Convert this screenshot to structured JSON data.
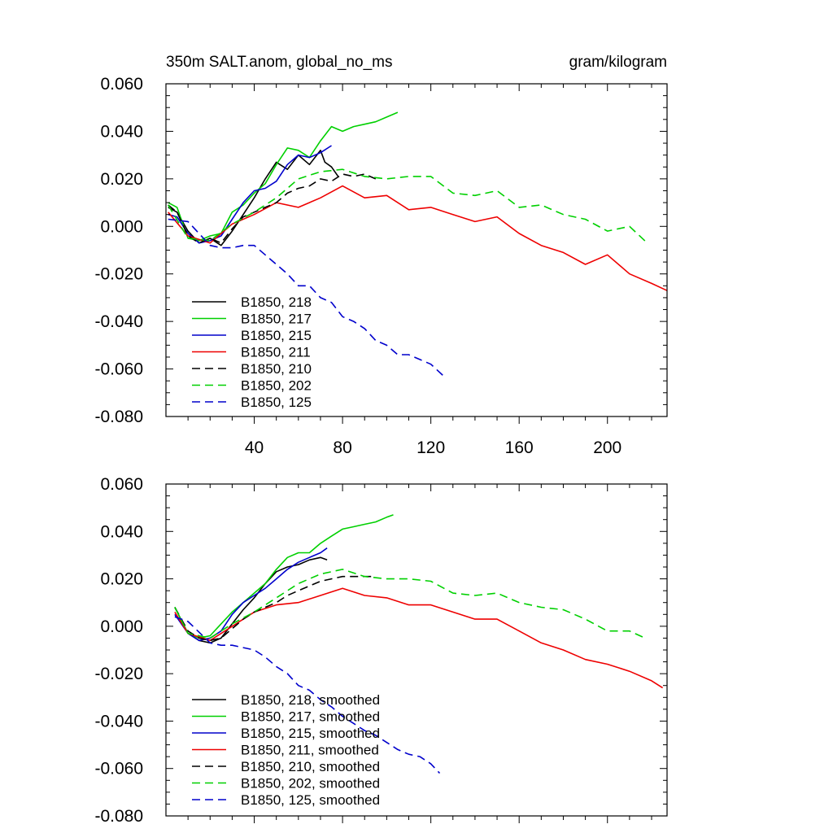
{
  "chart_data": [
    {
      "type": "line",
      "title": "350m SALT.anom, global_no_ms",
      "units": "gram/kilogram",
      "xlabel": "",
      "ylabel": "",
      "xlim": [
        0,
        227
      ],
      "ylim": [
        -0.08,
        0.06
      ],
      "xticks": [
        40,
        80,
        120,
        160,
        200
      ],
      "xtick_labels": [
        "40",
        "80",
        "120",
        "160",
        "200"
      ],
      "yticks": [
        0.06,
        0.04,
        0.02,
        0.0,
        -0.02,
        -0.04,
        -0.06,
        -0.08
      ],
      "ytick_labels": [
        "0.060",
        "0.040",
        "0.020",
        "0.000",
        "-0.020",
        "-0.040",
        "-0.060",
        "-0.080"
      ],
      "legend_position": "bottom-left",
      "series": [
        {
          "name": "B1850, 218",
          "color": "#000000",
          "dash": "solid",
          "x": [
            1,
            5,
            10,
            15,
            20,
            25,
            30,
            35,
            40,
            45,
            50,
            55,
            60,
            65,
            70,
            72,
            75,
            78
          ],
          "y": [
            0.008,
            0.006,
            -0.002,
            -0.007,
            -0.005,
            -0.008,
            -0.002,
            0.005,
            0.012,
            0.02,
            0.027,
            0.024,
            0.03,
            0.026,
            0.032,
            0.027,
            0.025,
            0.021
          ]
        },
        {
          "name": "B1850, 217",
          "color": "#00d000",
          "dash": "solid",
          "x": [
            1,
            5,
            10,
            15,
            20,
            25,
            30,
            35,
            40,
            45,
            50,
            55,
            60,
            65,
            70,
            75,
            80,
            85,
            90,
            95,
            100,
            105
          ],
          "y": [
            0.01,
            0.008,
            -0.005,
            -0.006,
            -0.004,
            -0.003,
            0.006,
            0.009,
            0.014,
            0.018,
            0.026,
            0.033,
            0.032,
            0.029,
            0.036,
            0.042,
            0.04,
            0.042,
            0.043,
            0.044,
            0.046,
            0.048
          ]
        },
        {
          "name": "B1850, 215",
          "color": "#0000cc",
          "dash": "solid",
          "x": [
            1,
            5,
            10,
            15,
            20,
            25,
            30,
            35,
            40,
            45,
            50,
            55,
            60,
            65,
            70,
            75
          ],
          "y": [
            0.005,
            0.004,
            -0.003,
            -0.007,
            -0.006,
            -0.004,
            0.003,
            0.01,
            0.015,
            0.016,
            0.019,
            0.026,
            0.03,
            0.029,
            0.031,
            0.034
          ]
        },
        {
          "name": "B1850, 211",
          "color": "#ee0000",
          "dash": "solid",
          "x": [
            1,
            10,
            20,
            30,
            40,
            50,
            60,
            70,
            80,
            90,
            100,
            110,
            120,
            130,
            140,
            150,
            160,
            170,
            180,
            190,
            200,
            210,
            220,
            227
          ],
          "y": [
            0.006,
            -0.004,
            -0.007,
            0.001,
            0.005,
            0.01,
            0.008,
            0.012,
            0.017,
            0.012,
            0.013,
            0.007,
            0.008,
            0.005,
            0.002,
            0.004,
            -0.003,
            -0.008,
            -0.011,
            -0.016,
            -0.012,
            -0.02,
            -0.024,
            -0.027
          ]
        },
        {
          "name": "B1850, 210",
          "color": "#000000",
          "dash": "dashed",
          "x": [
            1,
            5,
            10,
            15,
            20,
            25,
            30,
            35,
            40,
            45,
            50,
            55,
            60,
            65,
            70,
            75,
            80,
            85,
            90,
            95
          ],
          "y": [
            0.009,
            0.006,
            -0.004,
            -0.007,
            -0.005,
            -0.007,
            -0.001,
            0.004,
            0.006,
            0.008,
            0.01,
            0.014,
            0.016,
            0.017,
            0.02,
            0.019,
            0.022,
            0.021,
            0.022,
            0.02
          ]
        },
        {
          "name": "B1850, 202",
          "color": "#00d000",
          "dash": "dashed",
          "x": [
            1,
            10,
            20,
            30,
            40,
            50,
            60,
            70,
            80,
            90,
            100,
            110,
            120,
            130,
            140,
            150,
            160,
            170,
            180,
            190,
            200,
            210,
            218
          ],
          "y": [
            0.009,
            -0.005,
            -0.006,
            0.001,
            0.006,
            0.012,
            0.02,
            0.023,
            0.024,
            0.021,
            0.02,
            0.021,
            0.021,
            0.014,
            0.013,
            0.015,
            0.008,
            0.009,
            0.005,
            0.003,
            -0.002,
            0.0,
            -0.007
          ]
        },
        {
          "name": "B1850, 125",
          "color": "#0000cc",
          "dash": "dashed",
          "x": [
            1,
            10,
            20,
            25,
            30,
            35,
            40,
            45,
            50,
            55,
            60,
            65,
            70,
            75,
            80,
            85,
            90,
            95,
            100,
            105,
            110,
            115,
            120,
            127
          ],
          "y": [
            0.003,
            0.002,
            -0.008,
            -0.009,
            -0.009,
            -0.008,
            -0.008,
            -0.012,
            -0.016,
            -0.02,
            -0.025,
            -0.025,
            -0.03,
            -0.032,
            -0.038,
            -0.04,
            -0.043,
            -0.048,
            -0.05,
            -0.054,
            -0.054,
            -0.056,
            -0.058,
            -0.064
          ]
        }
      ]
    },
    {
      "type": "line",
      "title": "",
      "xlabel": "",
      "ylabel": "",
      "xlim": [
        0,
        227
      ],
      "ylim": [
        -0.08,
        0.06
      ],
      "xticks": [
        40,
        80,
        120,
        160,
        200
      ],
      "yticks": [
        0.06,
        0.04,
        0.02,
        0.0,
        -0.02,
        -0.04,
        -0.06,
        -0.08
      ],
      "ytick_labels": [
        "0.060",
        "0.040",
        "0.020",
        "0.000",
        "-0.020",
        "-0.040",
        "-0.060",
        "-0.080"
      ],
      "legend_position": "bottom-left",
      "series": [
        {
          "name": "B1850, 218, smoothed",
          "color": "#000000",
          "dash": "solid",
          "x": [
            4,
            10,
            15,
            20,
            25,
            30,
            35,
            40,
            45,
            50,
            55,
            60,
            65,
            70,
            73
          ],
          "y": [
            0.008,
            -0.003,
            -0.006,
            -0.007,
            -0.005,
            0.001,
            0.007,
            0.012,
            0.018,
            0.023,
            0.025,
            0.026,
            0.028,
            0.029,
            0.028
          ]
        },
        {
          "name": "B1850, 217, smoothed",
          "color": "#00d000",
          "dash": "solid",
          "x": [
            4,
            10,
            15,
            20,
            25,
            30,
            35,
            40,
            45,
            50,
            55,
            60,
            65,
            70,
            75,
            80,
            85,
            90,
            95,
            100,
            103
          ],
          "y": [
            0.008,
            -0.003,
            -0.005,
            -0.004,
            0.001,
            0.006,
            0.01,
            0.014,
            0.018,
            0.024,
            0.029,
            0.031,
            0.031,
            0.035,
            0.038,
            0.041,
            0.042,
            0.043,
            0.044,
            0.046,
            0.047
          ]
        },
        {
          "name": "B1850, 215, smoothed",
          "color": "#0000cc",
          "dash": "solid",
          "x": [
            4,
            10,
            15,
            20,
            25,
            30,
            35,
            40,
            45,
            50,
            55,
            60,
            65,
            70,
            73
          ],
          "y": [
            0.005,
            -0.003,
            -0.006,
            -0.005,
            -0.002,
            0.005,
            0.01,
            0.013,
            0.016,
            0.02,
            0.024,
            0.027,
            0.029,
            0.031,
            0.033
          ]
        },
        {
          "name": "B1850, 211, smoothed",
          "color": "#ee0000",
          "dash": "solid",
          "x": [
            4,
            10,
            20,
            30,
            40,
            50,
            60,
            70,
            80,
            90,
            100,
            110,
            120,
            130,
            140,
            150,
            160,
            170,
            180,
            190,
            200,
            210,
            220,
            225
          ],
          "y": [
            0.006,
            -0.003,
            -0.006,
            0.0,
            0.006,
            0.009,
            0.01,
            0.013,
            0.016,
            0.013,
            0.012,
            0.009,
            0.009,
            0.006,
            0.003,
            0.003,
            -0.002,
            -0.007,
            -0.01,
            -0.014,
            -0.016,
            -0.019,
            -0.023,
            -0.026
          ]
        },
        {
          "name": "B1850, 210, smoothed",
          "color": "#000000",
          "dash": "dashed",
          "x": [
            4,
            10,
            15,
            20,
            25,
            30,
            35,
            40,
            45,
            50,
            55,
            60,
            65,
            70,
            75,
            80,
            85,
            90,
            93
          ],
          "y": [
            0.008,
            -0.002,
            -0.005,
            -0.006,
            -0.005,
            -0.001,
            0.003,
            0.006,
            0.008,
            0.01,
            0.013,
            0.015,
            0.017,
            0.019,
            0.02,
            0.021,
            0.021,
            0.021,
            0.021
          ]
        },
        {
          "name": "B1850, 202, smoothed",
          "color": "#00d000",
          "dash": "dashed",
          "x": [
            4,
            10,
            20,
            30,
            40,
            50,
            60,
            70,
            80,
            90,
            100,
            110,
            120,
            130,
            140,
            150,
            160,
            170,
            180,
            190,
            200,
            210,
            217
          ],
          "y": [
            0.008,
            -0.003,
            -0.005,
            0.001,
            0.006,
            0.012,
            0.018,
            0.022,
            0.024,
            0.021,
            0.02,
            0.02,
            0.019,
            0.014,
            0.013,
            0.014,
            0.01,
            0.008,
            0.007,
            0.003,
            -0.002,
            -0.002,
            -0.005
          ]
        },
        {
          "name": "B1850, 125, smoothed",
          "color": "#0000cc",
          "dash": "dashed",
          "x": [
            4,
            10,
            20,
            25,
            30,
            35,
            40,
            45,
            50,
            55,
            60,
            65,
            70,
            75,
            80,
            85,
            90,
            95,
            100,
            105,
            110,
            115,
            120,
            124
          ],
          "y": [
            0.004,
            0.002,
            -0.007,
            -0.008,
            -0.008,
            -0.009,
            -0.01,
            -0.013,
            -0.017,
            -0.02,
            -0.025,
            -0.027,
            -0.031,
            -0.034,
            -0.038,
            -0.041,
            -0.044,
            -0.046,
            -0.049,
            -0.052,
            -0.054,
            -0.055,
            -0.058,
            -0.062
          ]
        }
      ]
    }
  ]
}
